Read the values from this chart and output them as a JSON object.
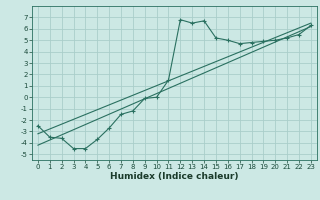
{
  "title": "",
  "xlabel": "Humidex (Indice chaleur)",
  "bg_color": "#cce8e4",
  "grid_color": "#aaceca",
  "line_color": "#2a7060",
  "xlim": [
    -0.5,
    23.5
  ],
  "ylim": [
    -5.5,
    8.0
  ],
  "xticks": [
    0,
    1,
    2,
    3,
    4,
    5,
    6,
    7,
    8,
    9,
    10,
    11,
    12,
    13,
    14,
    15,
    16,
    17,
    18,
    19,
    20,
    21,
    22,
    23
  ],
  "yticks": [
    -5,
    -4,
    -3,
    -2,
    -1,
    0,
    1,
    2,
    3,
    4,
    5,
    6,
    7
  ],
  "curve1_x": [
    0,
    1,
    2,
    3,
    4,
    5,
    6,
    7,
    8,
    9,
    10,
    11,
    12,
    13,
    14,
    15,
    16,
    17,
    18,
    19,
    20,
    21,
    22,
    23
  ],
  "curve1_y": [
    -2.5,
    -3.5,
    -3.6,
    -4.5,
    -4.5,
    -3.7,
    -2.7,
    -1.5,
    -1.2,
    -0.1,
    0.0,
    1.5,
    6.8,
    6.5,
    6.7,
    5.2,
    5.0,
    4.7,
    4.8,
    4.9,
    5.0,
    5.2,
    5.5,
    6.3
  ],
  "line1_x": [
    0,
    23
  ],
  "line1_y": [
    -4.2,
    6.2
  ],
  "line2_x": [
    0,
    23
  ],
  "line2_y": [
    -3.2,
    6.5
  ],
  "tick_fontsize": 5.0,
  "xlabel_fontsize": 6.5,
  "line_width": 0.8,
  "marker_size": 3.0
}
